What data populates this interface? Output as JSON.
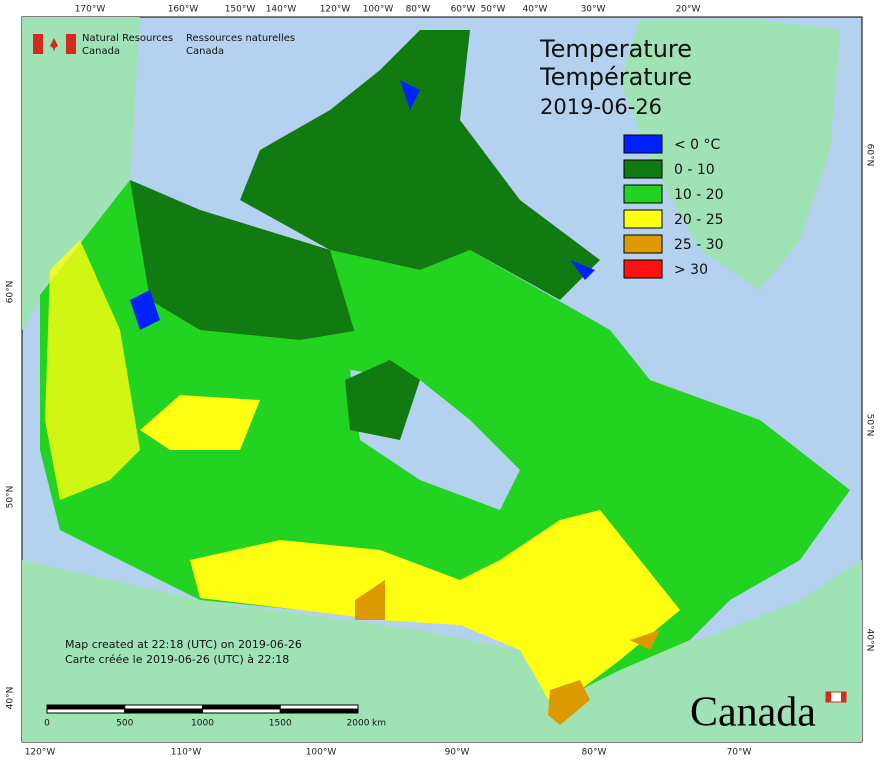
{
  "header": {
    "agency_en": [
      "Natural Resources",
      "Canada"
    ],
    "agency_fr": [
      "Ressources naturelles",
      "Canada"
    ]
  },
  "title": [
    "Temperature",
    "Température",
    "2019-06-26"
  ],
  "legend": [
    {
      "label": "< 0 °C",
      "color": "#0022ff"
    },
    {
      "label": "0 - 10",
      "color": "#117a11"
    },
    {
      "label": "10 - 20",
      "color": "#22d322"
    },
    {
      "label": "20 - 25",
      "color": "#ffff11"
    },
    {
      "label": "25 - 30",
      "color": "#dd9900"
    },
    {
      "label": "> 30",
      "color": "#ff1111"
    }
  ],
  "graticule": {
    "top": [
      "170°W",
      "160°W",
      "150°W",
      "140°W",
      "120°W",
      "100°W",
      "80°W",
      "60°W",
      "50°W",
      "40°W",
      "30°W",
      "20°W"
    ],
    "bottom": [
      "120°W",
      "110°W",
      "100°W",
      "90°W",
      "80°W",
      "70°W"
    ],
    "left": [
      "60°N",
      "50°N",
      "40°N"
    ],
    "right": [
      "60°N",
      "50°N",
      "40°N"
    ]
  },
  "notes": [
    "Map created at 22:18 (UTC) on 2019-06-26",
    "Carte créée le 2019-06-26 (UTC) à 22:18"
  ],
  "scale": {
    "labels": [
      "0",
      "500",
      "1000",
      "1500",
      "2000"
    ],
    "unit": "km"
  },
  "wordmark": "Canada"
}
